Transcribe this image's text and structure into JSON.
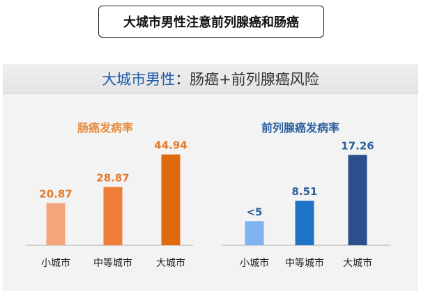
{
  "title": "大城市男性注意前列腺癌和肠癌",
  "panel": {
    "header_highlight": "大城市男性",
    "header_rest": "：肠癌+前列腺癌风险"
  },
  "chart_data": [
    {
      "type": "bar",
      "title": "肠癌发病率",
      "categories": [
        "小城市",
        "中等城市",
        "大城市"
      ],
      "values": [
        20.87,
        28.87,
        44.94
      ],
      "value_labels": [
        "20.87",
        "28.87",
        "44.94"
      ],
      "colors": [
        "#f4a67d",
        "#ee7e3a",
        "#e06a10"
      ],
      "title_color": "#e58a3c",
      "label_color": "#e07b2e",
      "ylim": [
        0,
        50
      ]
    },
    {
      "type": "bar",
      "title": "前列腺癌发病率",
      "categories": [
        "小城市",
        "中等城市",
        "大城市"
      ],
      "values": [
        4.6,
        8.51,
        17.26
      ],
      "value_labels": [
        "<5",
        "8.51",
        "17.26"
      ],
      "colors": [
        "#7fb2f0",
        "#1f74c8",
        "#2b4f8c"
      ],
      "title_color": "#2c5f9e",
      "label_color": "#2c5f9e",
      "ylim": [
        0,
        19.3
      ]
    }
  ]
}
